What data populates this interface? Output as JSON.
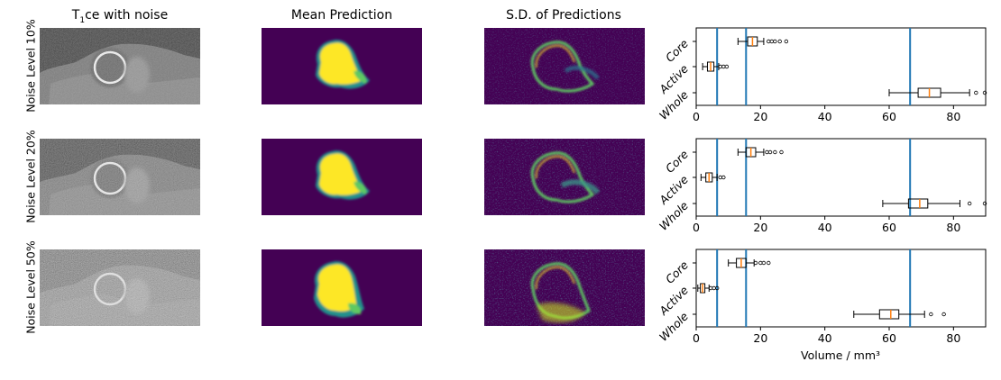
{
  "columns": {
    "t1ce": {
      "prefix": "T",
      "subscript": "1",
      "suffix": "ce with noise"
    },
    "mean": "Mean Prediction",
    "sd": "S.D. of Predictions"
  },
  "rows": [
    "Noise Level 10%",
    "Noise Level 20%",
    "Noise Level 50%"
  ],
  "colors": {
    "viridis_bg": "#440154",
    "viridis_yellow": "#fde725",
    "vline": "#1f77b4",
    "median": "#ff7f0e",
    "mri_bg": "#1a1a1a"
  },
  "chart_data": [
    {
      "type": "boxplot",
      "orientation": "horizontal",
      "categories": [
        "Core",
        "Active",
        "Whole"
      ],
      "xlim": [
        0,
        90
      ],
      "xticks": [
        0,
        20,
        40,
        60,
        80
      ],
      "vlines": [
        6.5,
        15.5,
        66.5
      ],
      "xlabel": "",
      "boxes": [
        {
          "min": 13,
          "q1": 16,
          "median": 17.5,
          "q3": 19,
          "max": 21,
          "outliers": [
            22.5,
            23.5,
            24.5,
            26,
            28
          ]
        },
        {
          "min": 2,
          "q1": 3.5,
          "median": 4.5,
          "q3": 5.5,
          "max": 7,
          "outliers": [
            7.5,
            8.5,
            9.5
          ]
        },
        {
          "min": 60,
          "q1": 69,
          "median": 72.5,
          "q3": 76,
          "max": 85,
          "outliers": [
            87,
            90
          ]
        }
      ]
    },
    {
      "type": "boxplot",
      "orientation": "horizontal",
      "categories": [
        "Core",
        "Active",
        "Whole"
      ],
      "xlim": [
        0,
        90
      ],
      "xticks": [
        0,
        20,
        40,
        60,
        80
      ],
      "vlines": [
        6.5,
        15.5,
        66.5
      ],
      "xlabel": "",
      "boxes": [
        {
          "min": 13,
          "q1": 15.5,
          "median": 17,
          "q3": 18.5,
          "max": 21,
          "outliers": [
            22,
            23,
            24.5,
            26.5
          ]
        },
        {
          "min": 1.5,
          "q1": 3,
          "median": 4,
          "q3": 5,
          "max": 6.5,
          "outliers": [
            7.5,
            8.5
          ]
        },
        {
          "min": 58,
          "q1": 66,
          "median": 69.5,
          "q3": 72,
          "max": 82,
          "outliers": [
            85,
            90
          ]
        }
      ]
    },
    {
      "type": "boxplot",
      "orientation": "horizontal",
      "categories": [
        "Core",
        "Active",
        "Whole"
      ],
      "xlim": [
        0,
        90
      ],
      "xticks": [
        0,
        20,
        40,
        60,
        80
      ],
      "vlines": [
        6.5,
        15.5,
        66.5
      ],
      "xlabel": "Volume / mm³",
      "boxes": [
        {
          "min": 10,
          "q1": 12.5,
          "median": 14,
          "q3": 15.5,
          "max": 18,
          "outliers": [
            18.5,
            20,
            21,
            22.5
          ]
        },
        {
          "min": 0.5,
          "q1": 1.3,
          "median": 2,
          "q3": 2.7,
          "max": 4,
          "outliers": [
            4.5,
            5.5,
            6.5
          ]
        },
        {
          "min": 49,
          "q1": 57,
          "median": 60.5,
          "q3": 63,
          "max": 71,
          "outliers": [
            73,
            77
          ]
        }
      ]
    }
  ]
}
